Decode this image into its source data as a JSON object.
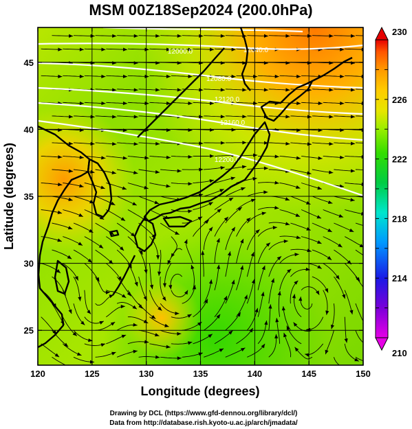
{
  "title": "MSM 00Z18Sep2024 (200.0hPa)",
  "x_axis": {
    "label": "Longitude (degrees)",
    "range": [
      120,
      150
    ],
    "ticks": [
      "120",
      "125",
      "130",
      "135",
      "140",
      "145",
      "150"
    ]
  },
  "y_axis": {
    "label": "Latitude  (degrees)",
    "range": [
      22.4,
      47.6
    ],
    "ticks": [
      "25",
      "30",
      "35",
      "40",
      "45"
    ]
  },
  "colorbar": {
    "ticks": [
      "230",
      "226",
      "222",
      "218",
      "214",
      "210"
    ],
    "range": [
      210,
      230
    ],
    "colors": [
      "#e600e6",
      "#7a00d9",
      "#1a1ae6",
      "#0099ff",
      "#00e6cc",
      "#00cc44",
      "#33dd00",
      "#99ee00",
      "#e6e600",
      "#ffcc00",
      "#ff9900",
      "#ff5500",
      "#e60000"
    ]
  },
  "contours": [
    {
      "label": "12000.0"
    },
    {
      "label": "12040.0"
    },
    {
      "label": "12080.0"
    },
    {
      "label": "12120.0"
    },
    {
      "label": "12160.0"
    },
    {
      "label": "12200.0"
    }
  ],
  "credits": {
    "line1": "Drawing by DCL (https://www.gfd-dennou.org/library/dcl/)",
    "line2": "Data from http://database.rish.kyoto-u.ac.jp/arch/jmadata/"
  }
}
